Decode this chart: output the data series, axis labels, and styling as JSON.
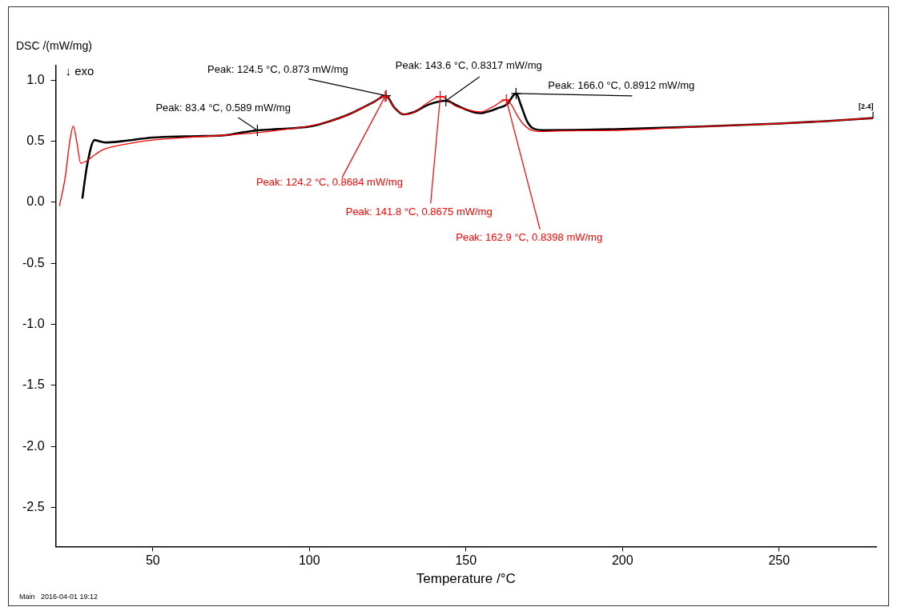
{
  "chart_data": {
    "type": "line",
    "xlabel": "Temperature /°C",
    "ylabel": "DSC /(mW/mg)",
    "xlim": [
      19,
      281
    ],
    "xticks": [
      50,
      100,
      150,
      200,
      250
    ],
    "ylim": [
      -2.82,
      1.12
    ],
    "yticks": [
      {
        "value": 1,
        "label": "1.0"
      },
      0.5,
      {
        "value": 0,
        "label": "0.0"
      },
      -0.5,
      {
        "value": -1,
        "label": "-1.0"
      },
      -1.5,
      {
        "value": -2,
        "label": "-2.0"
      },
      -2.5
    ],
    "grid": false,
    "legend": false,
    "marker": "none",
    "line_style": "solid",
    "series": [
      {
        "color": "#000000",
        "x": [
          27.5,
          29,
          31.4,
          33,
          35,
          40,
          50,
          60,
          73.3,
          78,
          83.4,
          90,
          100,
          106,
          112.6,
          120.4,
          124.5,
          127,
          130,
          133.5,
          138,
          143.6,
          146.6,
          150,
          154.5,
          158,
          160,
          163,
          166.0,
          167.5,
          169.6,
          171.5,
          175.4,
          185,
          200,
          225,
          250,
          265,
          280
        ],
        "values": [
          0.03,
          0.3,
          0.51,
          0.5,
          0.49,
          0.5,
          0.53,
          0.54,
          0.55,
          0.57,
          0.589,
          0.6,
          0.62,
          0.66,
          0.72,
          0.82,
          0.873,
          0.78,
          0.72,
          0.74,
          0.8,
          0.8317,
          0.8,
          0.76,
          0.73,
          0.75,
          0.77,
          0.8,
          0.8912,
          0.8,
          0.66,
          0.605,
          0.59,
          0.592,
          0.6,
          0.62,
          0.645,
          0.665,
          0.69
        ]
      },
      {
        "color": "#ff0000",
        "x": [
          20.2,
          22,
          23.5,
          24.6,
          25.7,
          27,
          29,
          31,
          34,
          40,
          50,
          60,
          73.3,
          83.4,
          90,
          100,
          106,
          112.6,
          120.4,
          124.2,
          127,
          130,
          133.5,
          138,
          141.8,
          146.6,
          150,
          154.5,
          158.4,
          162.9,
          164.5,
          166.2,
          168,
          170.2,
          172.8,
          180,
          200,
          225,
          250,
          265,
          280
        ],
        "values": [
          -0.03,
          0.2,
          0.5,
          0.625,
          0.5,
          0.32,
          0.34,
          0.38,
          0.43,
          0.47,
          0.51,
          0.53,
          0.55,
          0.57,
          0.59,
          0.625,
          0.66,
          0.72,
          0.82,
          0.8684,
          0.78,
          0.72,
          0.74,
          0.82,
          0.8675,
          0.79,
          0.76,
          0.74,
          0.78,
          0.8398,
          0.8,
          0.72,
          0.65,
          0.6,
          0.58,
          0.585,
          0.59,
          0.62,
          0.645,
          0.665,
          0.69
        ]
      }
    ],
    "annotations": [
      {
        "text": "Peak: 83.4 °C, 0.589 mW/mg",
        "x": 83.4,
        "y": 0.589
      },
      {
        "text": "Peak: 124.5 °C, 0.873 mW/mg",
        "x": 124.5,
        "y": 0.873
      },
      {
        "text": "Peak: 143.6 °C, 0.8317 mW/mg",
        "x": 143.6,
        "y": 0.8317
      },
      {
        "text": "Peak: 166.0 °C, 0.8912 mW/mg",
        "x": 166.0,
        "y": 0.8912
      },
      {
        "text": "Peak: 124.2 °C, 0.8684 mW/mg",
        "x": 124.2,
        "y": 0.8684
      },
      {
        "text": "Peak: 141.8 °C, 0.8675 mW/mg",
        "x": 141.8,
        "y": 0.8675
      },
      {
        "text": "Peak: 162.9 °C, 0.8398 mW/mg",
        "x": 162.9,
        "y": 0.8398
      },
      {
        "text": "[2.4]",
        "x": 280,
        "y": 0.69
      },
      "↓ exo",
      "Main   2016-04-01 19:12"
    ]
  }
}
